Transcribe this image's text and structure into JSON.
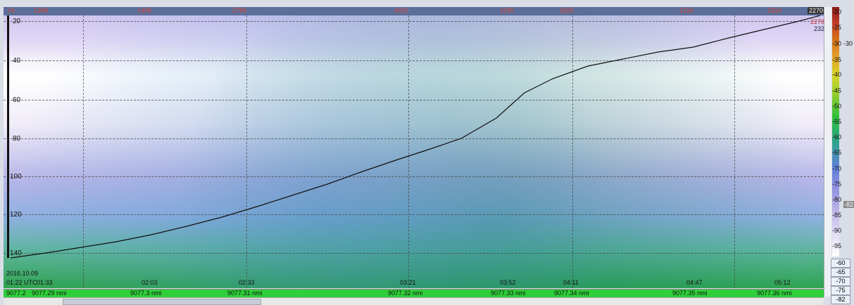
{
  "top_scale": [
    "16",
    "1308",
    "1408",
    "2789",
    "4020",
    "3185",
    "2655",
    "2150",
    "1810",
    "2270"
  ],
  "right_markers": [
    "2270",
    "232"
  ],
  "depth_ticks": [
    "20",
    "40",
    "60",
    "80",
    "100",
    "120",
    "140"
  ],
  "date": "2016.10.09",
  "utc_time": "01:22 UTC",
  "times": [
    "01:33",
    "02:03",
    "02:33",
    "03:21",
    "03:52",
    "04:11",
    "04:47",
    "05:12"
  ],
  "distances": [
    "9077.2",
    "9077.29 nmi",
    "9077.3 nmi",
    "9077.31 nmi",
    "9077.32 nmi",
    "9077.33 nmi",
    "9077.34 nmi",
    "9077.35 nmi",
    "9077.36 nmi"
  ],
  "colorbar_labels": [
    "-20",
    "-25",
    "-30",
    "-30",
    "-35",
    "-40",
    "-45",
    "-50",
    "-55",
    "-60",
    "-65",
    "-70",
    "-75",
    "-80",
    "-82",
    "-85",
    "-90",
    "-95"
  ],
  "colorbar_boxes": [
    "-60",
    "-65",
    "-70",
    "-75",
    "-82"
  ],
  "colors": {
    "bg": "#d9dde6",
    "grid": "#444444",
    "track": "#111111",
    "distbar": "#2fcf3a"
  }
}
